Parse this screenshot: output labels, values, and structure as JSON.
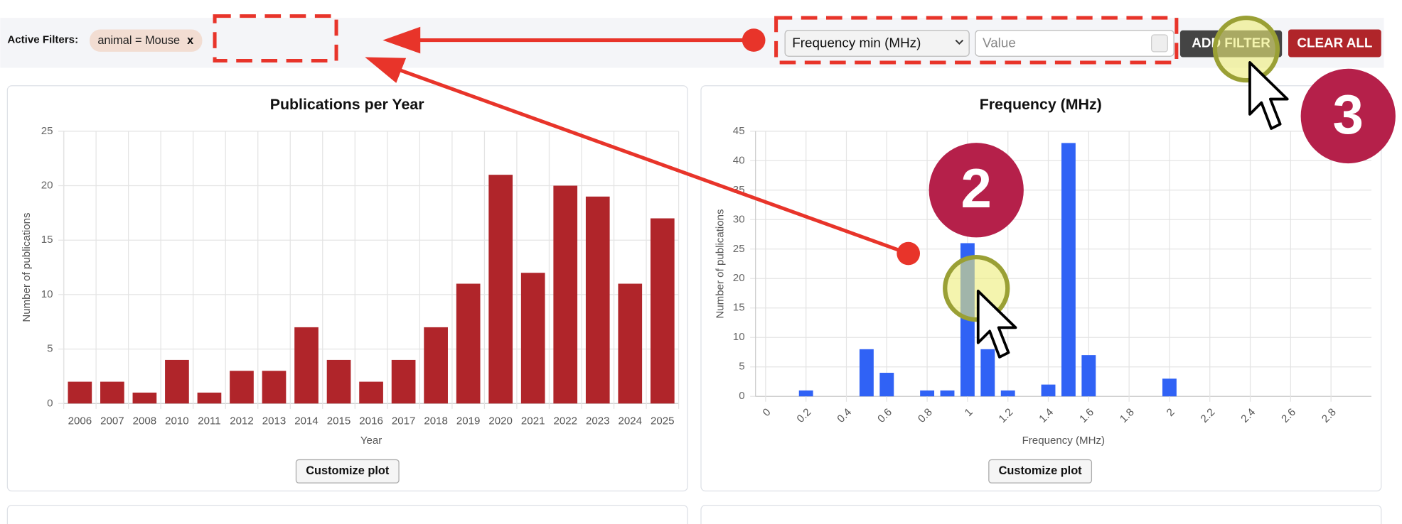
{
  "filter_bar": {
    "label": "Active Filters:",
    "filters": [
      {
        "text": "animal = Mouse",
        "remove": "x"
      }
    ],
    "field_select": "Frequency min (MHz)",
    "value_placeholder": "Value",
    "add_button": "ADD FILTER",
    "clear_button": "CLEAR ALL"
  },
  "annotations": {
    "steps": [
      "2",
      "3"
    ]
  },
  "chart_data": [
    {
      "type": "bar",
      "title": "Publications per Year",
      "xlabel": "Year",
      "ylabel": "Number of publications",
      "categories": [
        "2006",
        "2007",
        "2008",
        "2010",
        "2011",
        "2012",
        "2013",
        "2014",
        "2015",
        "2016",
        "2017",
        "2018",
        "2019",
        "2020",
        "2021",
        "2022",
        "2023",
        "2024",
        "2025"
      ],
      "values": [
        2,
        2,
        1,
        4,
        1,
        3,
        3,
        7,
        4,
        2,
        4,
        7,
        11,
        21,
        12,
        20,
        19,
        11,
        17
      ],
      "color": "#b0252a",
      "ylim": [
        0,
        25
      ],
      "yticks": [
        0,
        5,
        10,
        15,
        20,
        25
      ],
      "grid": true,
      "button": "Customize plot"
    },
    {
      "type": "histogram",
      "title": "Frequency (MHz)",
      "xlabel": "Frequency (MHz)",
      "ylabel": "Number of publications",
      "bins": [
        -0.05,
        0.05,
        0.15,
        0.25,
        0.35,
        0.45,
        0.55,
        0.65,
        0.75,
        0.85,
        0.95,
        1.05,
        1.15,
        1.25,
        1.35,
        1.45,
        1.55,
        1.65,
        1.75,
        1.85,
        1.95,
        2.05,
        2.15,
        2.25,
        2.35,
        2.45,
        2.55,
        2.65,
        2.75,
        2.85,
        2.95
      ],
      "values": [
        0,
        0,
        1,
        0,
        0,
        8,
        4,
        0,
        1,
        1,
        26,
        8,
        1,
        0,
        2,
        43,
        7,
        0,
        0,
        0,
        3,
        0,
        0,
        0,
        0,
        0,
        0,
        0,
        0,
        0
      ],
      "color": "#3062f5",
      "xlim": [
        -0.05,
        3.0
      ],
      "xticks": [
        0,
        0.2,
        0.4,
        0.6,
        0.8,
        1,
        1.2,
        1.4,
        1.6,
        1.8,
        2,
        2.2,
        2.4,
        2.6,
        2.8
      ],
      "ylim": [
        0,
        45
      ],
      "yticks": [
        0,
        5,
        10,
        15,
        20,
        25,
        30,
        35,
        40,
        45
      ],
      "grid": true,
      "button": "Customize plot"
    }
  ]
}
